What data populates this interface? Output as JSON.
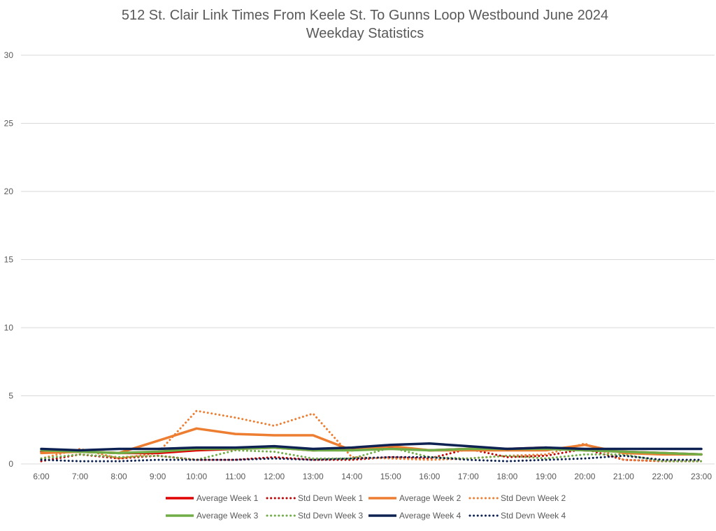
{
  "chart_data": {
    "type": "line",
    "title": "512 St. Clair Link Times From Keele St. To Gunns Loop Westbound June 2024",
    "subtitle": "Weekday Statistics",
    "xlabel": "",
    "ylabel": "",
    "ylim": [
      0,
      30
    ],
    "yticks": [
      0,
      5,
      10,
      15,
      20,
      25,
      30
    ],
    "grid": true,
    "legend_position": "bottom",
    "categories": [
      "6:00",
      "7:00",
      "8:00",
      "9:00",
      "10:00",
      "11:00",
      "12:00",
      "13:00",
      "14:00",
      "15:00",
      "16:00",
      "17:00",
      "18:00",
      "19:00",
      "20:00",
      "21:00",
      "22:00",
      "23:00"
    ],
    "series": [
      {
        "name": "Average Week 1",
        "color": "#e00000",
        "style": "solid",
        "values": [
          0.9,
          0.9,
          0.8,
          0.8,
          1.0,
          1.1,
          1.2,
          1.0,
          1.1,
          1.2,
          1.0,
          1.1,
          1.1,
          1.2,
          1.0,
          0.9,
          0.8,
          0.7
        ]
      },
      {
        "name": "Std Devn Week 1",
        "color": "#c00000",
        "style": "dotted",
        "values": [
          0.2,
          0.7,
          0.4,
          0.6,
          0.3,
          0.3,
          0.5,
          0.3,
          0.3,
          0.5,
          0.4,
          1.1,
          0.5,
          0.6,
          1.1,
          0.3,
          0.2,
          0.2
        ]
      },
      {
        "name": "Average Week 2",
        "color": "#ed7d31",
        "style": "solid",
        "values": [
          0.8,
          0.9,
          0.8,
          1.7,
          2.6,
          2.2,
          2.1,
          2.1,
          1.0,
          1.3,
          1.0,
          1.0,
          1.0,
          1.0,
          1.4,
          0.8,
          0.7,
          0.7
        ]
      },
      {
        "name": "Std Devn Week 2",
        "color": "#ed7d31",
        "style": "dotted",
        "values": [
          0.4,
          1.1,
          0.4,
          0.8,
          3.9,
          3.4,
          2.8,
          3.7,
          0.5,
          0.4,
          0.3,
          0.4,
          0.6,
          0.7,
          1.5,
          0.3,
          0.2,
          0.2
        ]
      },
      {
        "name": "Average Week 3",
        "color": "#70ad47",
        "style": "solid",
        "values": [
          1.0,
          0.9,
          0.8,
          0.9,
          1.1,
          1.1,
          1.2,
          1.0,
          1.0,
          1.1,
          1.0,
          1.1,
          1.1,
          1.1,
          1.0,
          0.9,
          0.8,
          0.7
        ]
      },
      {
        "name": "Std Devn Week 3",
        "color": "#70ad47",
        "style": "dotted",
        "values": [
          0.4,
          0.7,
          0.5,
          0.6,
          0.3,
          1.0,
          0.9,
          0.4,
          0.4,
          1.2,
          0.5,
          0.4,
          0.6,
          0.4,
          0.7,
          0.7,
          0.2,
          0.2
        ]
      },
      {
        "name": "Average Week 4",
        "color": "#0d2252",
        "style": "solid",
        "values": [
          1.1,
          1.0,
          1.1,
          1.1,
          1.2,
          1.2,
          1.3,
          1.1,
          1.2,
          1.4,
          1.5,
          1.3,
          1.1,
          1.2,
          1.1,
          1.1,
          1.1,
          1.1
        ]
      },
      {
        "name": "Std Devn Week 4",
        "color": "#0d2252",
        "style": "dotted",
        "values": [
          0.3,
          0.2,
          0.2,
          0.3,
          0.3,
          0.3,
          0.4,
          0.3,
          0.4,
          0.5,
          0.5,
          0.3,
          0.2,
          0.3,
          0.4,
          0.6,
          0.3,
          0.3
        ]
      }
    ]
  }
}
